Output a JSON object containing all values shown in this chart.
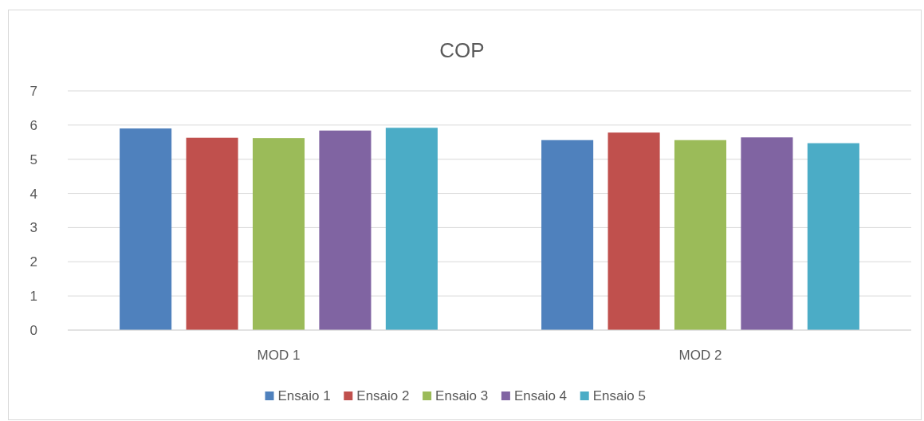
{
  "chart_data": {
    "type": "bar",
    "title": "COP",
    "categories": [
      "MOD 1",
      "MOD 2"
    ],
    "series": [
      {
        "name": "Ensaio 1",
        "color": "#4f81bd",
        "values": [
          5.9,
          5.56
        ]
      },
      {
        "name": "Ensaio 2",
        "color": "#c0504d",
        "values": [
          5.63,
          5.78
        ]
      },
      {
        "name": "Ensaio 3",
        "color": "#9bbb59",
        "values": [
          5.62,
          5.56
        ]
      },
      {
        "name": "Ensaio 4",
        "color": "#8064a2",
        "values": [
          5.84,
          5.64
        ]
      },
      {
        "name": "Ensaio 5",
        "color": "#4bacc6",
        "values": [
          5.92,
          5.47
        ]
      }
    ],
    "ylim": [
      0,
      7
    ],
    "yticks": [
      0,
      1,
      2,
      3,
      4,
      5,
      6,
      7
    ],
    "grid": "y",
    "legend": "bottom"
  }
}
